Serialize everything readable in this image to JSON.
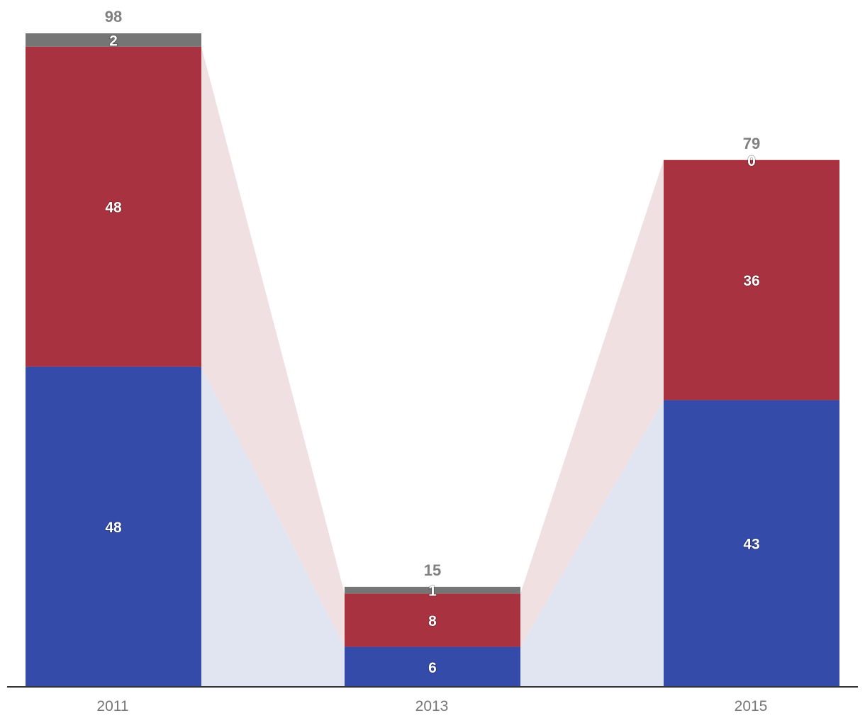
{
  "chart_data": {
    "type": "bar",
    "stacked": true,
    "categories": [
      "2011",
      "2013",
      "2015"
    ],
    "series": [
      {
        "key": "blue",
        "values": [
          48,
          6,
          43
        ]
      },
      {
        "key": "red",
        "values": [
          48,
          8,
          36
        ]
      },
      {
        "key": "gray",
        "values": [
          2,
          1,
          0
        ]
      }
    ],
    "totals": [
      98,
      15,
      79
    ],
    "ylim": [
      0,
      98
    ],
    "grid": false,
    "legend": "none",
    "colors": {
      "blue": "#344BAA",
      "red": "#A93240",
      "gray": "#757575",
      "blue_band": "#E1E5F2",
      "red_band": "#F1E0E2",
      "segment_label": "#FFFFFF",
      "total_label": "#808080",
      "tick_label": "#757575",
      "axis": "#333333"
    }
  }
}
